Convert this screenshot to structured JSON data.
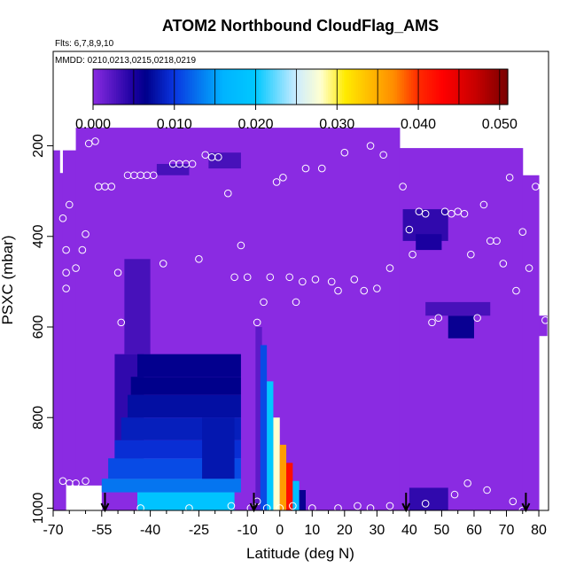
{
  "chart_data": {
    "type": "heatmap",
    "title": "ATOM2 Northbound CloudFlag_AMS",
    "subtitle_flights": "Flts: 6,7,8,9,10",
    "subtitle_dates": "MMDD: 0210,0213,0215,0218,0219",
    "xlabel": "Latitude (deg N)",
    "ylabel": "PSXC (mbar)",
    "xlim": [
      -70,
      83
    ],
    "ylim": [
      1005,
      80
    ],
    "y_reversed": true,
    "x_ticks": [
      -70,
      -55,
      -40,
      -25,
      -10,
      0,
      10,
      20,
      30,
      40,
      50,
      60,
      70,
      80
    ],
    "x_tick_labels": [
      "-70",
      "-55",
      "-40",
      "-25",
      "-10",
      "0",
      "10",
      "20",
      "30",
      "40",
      "50",
      "60",
      "70",
      "80"
    ],
    "x_minor_ticks": [
      -65,
      -60,
      -50,
      -45,
      -35,
      -30,
      -20,
      -15,
      -5,
      5,
      15,
      25,
      35,
      45,
      55,
      65,
      75
    ],
    "y_ticks": [
      200,
      400,
      600,
      800,
      1000
    ],
    "y_tick_labels": [
      "200",
      "400",
      "600",
      "800",
      "1000"
    ],
    "colorbar": {
      "min": 0.0,
      "max": 0.051,
      "ticks": [
        0.0,
        0.01,
        0.02,
        0.03,
        0.04,
        0.05
      ],
      "tick_labels": [
        "0.000",
        "0.010",
        "0.020",
        "0.030",
        "0.040",
        "0.050"
      ],
      "levels": [
        0.0,
        0.005,
        0.01,
        0.015,
        0.02,
        0.025,
        0.03,
        0.035,
        0.04,
        0.045,
        0.05
      ],
      "stops": [
        {
          "v": 0.0,
          "color": "#8a2be2"
        },
        {
          "v": 0.005,
          "color": "#1a00a0"
        },
        {
          "v": 0.0065,
          "color": "#00008b"
        },
        {
          "v": 0.01,
          "color": "#0a36e0"
        },
        {
          "v": 0.016,
          "color": "#00b4ff"
        },
        {
          "v": 0.02,
          "color": "#00c8ff"
        },
        {
          "v": 0.025,
          "color": "#ccecff"
        },
        {
          "v": 0.028,
          "color": "#ffffd0"
        },
        {
          "v": 0.031,
          "color": "#ffeb00"
        },
        {
          "v": 0.037,
          "color": "#ff8c00"
        },
        {
          "v": 0.04,
          "color": "#ff2a00"
        },
        {
          "v": 0.043,
          "color": "#ff0000"
        },
        {
          "v": 0.047,
          "color": "#c80000"
        },
        {
          "v": 0.051,
          "color": "#780000"
        }
      ]
    },
    "background_value": 0.0,
    "cells": [
      {
        "lat": [
          -66,
          -55
        ],
        "p": [
          950,
          1005
        ],
        "v": "none"
      },
      {
        "lat": [
          -48,
          -40
        ],
        "p": [
          450,
          660
        ],
        "v": 0.003
      },
      {
        "lat": [
          -51,
          -42
        ],
        "p": [
          660,
          900
        ],
        "v": 0.004
      },
      {
        "lat": [
          -44,
          -12
        ],
        "p": [
          660,
          710
        ],
        "v": 0.0063
      },
      {
        "lat": [
          -46,
          -12
        ],
        "p": [
          710,
          750
        ],
        "v": 0.0065
      },
      {
        "lat": [
          -47,
          -12
        ],
        "p": [
          750,
          800
        ],
        "v": 0.0075
      },
      {
        "lat": [
          -49,
          -12
        ],
        "p": [
          800,
          850
        ],
        "v": 0.0085
      },
      {
        "lat": [
          -51,
          -12
        ],
        "p": [
          850,
          890
        ],
        "v": 0.0095
      },
      {
        "lat": [
          -53,
          -12
        ],
        "p": [
          890,
          935
        ],
        "v": 0.011
      },
      {
        "lat": [
          -55,
          -12
        ],
        "p": [
          935,
          965
        ],
        "v": 0.013
      },
      {
        "lat": [
          -44,
          -14
        ],
        "p": [
          965,
          1005
        ],
        "v": 0.019
      },
      {
        "lat": [
          -24,
          -14
        ],
        "p": [
          800,
          935
        ],
        "v": 0.008
      },
      {
        "lat": [
          -7.5,
          -5.5
        ],
        "p": [
          600,
          1005
        ],
        "v": 0.002
      },
      {
        "lat": [
          -6,
          -4
        ],
        "p": [
          640,
          1005
        ],
        "v": 0.011
      },
      {
        "lat": [
          -4,
          -2
        ],
        "p": [
          720,
          1005
        ],
        "v": 0.02
      },
      {
        "lat": [
          -2,
          0
        ],
        "p": [
          800,
          1005
        ],
        "v": 0.028
      },
      {
        "lat": [
          0,
          2
        ],
        "p": [
          860,
          1005
        ],
        "v": 0.036
      },
      {
        "lat": [
          2,
          4
        ],
        "p": [
          900,
          1005
        ],
        "v": 0.042
      },
      {
        "lat": [
          4,
          6
        ],
        "p": [
          940,
          1005
        ],
        "v": 0.018
      },
      {
        "lat": [
          6,
          8
        ],
        "p": [
          960,
          1005
        ],
        "v": 0.006
      },
      {
        "lat": [
          -38,
          -28
        ],
        "p": [
          240,
          265
        ],
        "v": 0.003
      },
      {
        "lat": [
          -22,
          -12
        ],
        "p": [
          215,
          250
        ],
        "v": 0.003
      },
      {
        "lat": [
          38,
          52
        ],
        "p": [
          340,
          410
        ],
        "v": 0.004
      },
      {
        "lat": [
          42,
          50
        ],
        "p": [
          395,
          430
        ],
        "v": 0.005
      },
      {
        "lat": [
          52,
          60
        ],
        "p": [
          575,
          625
        ],
        "v": 0.006
      },
      {
        "lat": [
          45,
          65
        ],
        "p": [
          545,
          575
        ],
        "v": 0.003
      },
      {
        "lat": [
          40,
          52
        ],
        "p": [
          955,
          1005
        ],
        "v": 0.004
      }
    ],
    "coverage": [
      {
        "lat": [
          -70,
          -68
        ],
        "p": [
          210,
          1005
        ]
      },
      {
        "lat": [
          -68,
          -67
        ],
        "p": [
          260,
          1005
        ]
      },
      {
        "lat": [
          -67,
          -63
        ],
        "p": [
          210,
          1005
        ]
      },
      {
        "lat": [
          -63,
          37
        ],
        "p": [
          160,
          1005
        ]
      },
      {
        "lat": [
          37,
          75
        ],
        "p": [
          205,
          1005
        ]
      },
      {
        "lat": [
          75,
          80
        ],
        "p": [
          265,
          1005
        ]
      },
      {
        "lat": [
          80,
          82.5
        ],
        "p": [
          575,
          620
        ]
      }
    ],
    "flight_points": [
      [
        -67,
        940
      ],
      [
        -65,
        945
      ],
      [
        -63,
        945
      ],
      [
        -60,
        940
      ],
      [
        -56,
        1000
      ],
      [
        -43,
        1000
      ],
      [
        -28,
        1000
      ],
      [
        -15,
        995
      ],
      [
        -9,
        1000
      ],
      [
        -7,
        985
      ],
      [
        -4,
        1000
      ],
      [
        0,
        1000
      ],
      [
        4,
        995
      ],
      [
        10,
        1000
      ],
      [
        18,
        1000
      ],
      [
        24,
        995
      ],
      [
        28,
        1000
      ],
      [
        34,
        995
      ],
      [
        45,
        990
      ],
      [
        54,
        970
      ],
      [
        58,
        945
      ],
      [
        64,
        960
      ],
      [
        72,
        985
      ],
      [
        75,
        1005
      ],
      [
        82,
        970
      ],
      [
        -67,
        360
      ],
      [
        -66,
        430
      ],
      [
        -66,
        480
      ],
      [
        -66,
        515
      ],
      [
        -65,
        330
      ],
      [
        -63,
        470
      ],
      [
        -61,
        430
      ],
      [
        -60,
        395
      ],
      [
        -59,
        195
      ],
      [
        -57,
        190
      ],
      [
        -56,
        290
      ],
      [
        -54,
        290
      ],
      [
        -52,
        290
      ],
      [
        -50,
        480
      ],
      [
        -49,
        590
      ],
      [
        -47,
        265
      ],
      [
        -45,
        265
      ],
      [
        -43,
        265
      ],
      [
        -41,
        265
      ],
      [
        -39,
        265
      ],
      [
        -36,
        460
      ],
      [
        -33,
        240
      ],
      [
        -31,
        240
      ],
      [
        -29,
        240
      ],
      [
        -27,
        240
      ],
      [
        -25,
        450
      ],
      [
        -23,
        220
      ],
      [
        -21,
        225
      ],
      [
        -19,
        225
      ],
      [
        -16,
        305
      ],
      [
        -14,
        490
      ],
      [
        -12,
        420
      ],
      [
        -10,
        490
      ],
      [
        -7,
        590
      ],
      [
        -5,
        545
      ],
      [
        -3,
        490
      ],
      [
        -1,
        280
      ],
      [
        1,
        270
      ],
      [
        3,
        490
      ],
      [
        5,
        545
      ],
      [
        7,
        500
      ],
      [
        8,
        250
      ],
      [
        11,
        495
      ],
      [
        13,
        250
      ],
      [
        16,
        500
      ],
      [
        18,
        520
      ],
      [
        20,
        215
      ],
      [
        23,
        495
      ],
      [
        26,
        520
      ],
      [
        28,
        200
      ],
      [
        30,
        515
      ],
      [
        32,
        220
      ],
      [
        34,
        470
      ],
      [
        38,
        290
      ],
      [
        40,
        385
      ],
      [
        41,
        440
      ],
      [
        43,
        345
      ],
      [
        45,
        350
      ],
      [
        47,
        590
      ],
      [
        49,
        580
      ],
      [
        51,
        345
      ],
      [
        53,
        350
      ],
      [
        55,
        345
      ],
      [
        57,
        350
      ],
      [
        59,
        440
      ],
      [
        61,
        580
      ],
      [
        63,
        330
      ],
      [
        65,
        410
      ],
      [
        67,
        410
      ],
      [
        69,
        460
      ],
      [
        71,
        270
      ],
      [
        73,
        520
      ],
      [
        75,
        390
      ],
      [
        77,
        470
      ],
      [
        79,
        290
      ],
      [
        81,
        290
      ],
      [
        82,
        585
      ]
    ],
    "flight_markers": [
      -54,
      -8,
      39,
      76
    ]
  }
}
